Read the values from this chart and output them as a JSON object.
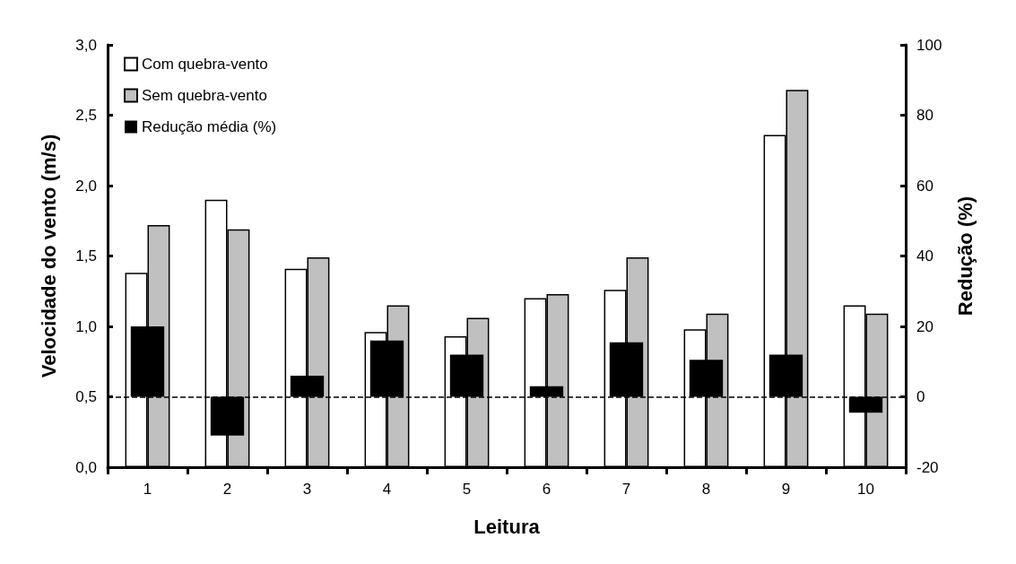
{
  "chart_data": {
    "type": "bar",
    "xlabel": "Leitura",
    "ylabel": "Velocidade do vento (m/s)",
    "y2label": "Redução (%)",
    "categories": [
      "1",
      "2",
      "3",
      "4",
      "5",
      "6",
      "7",
      "8",
      "9",
      "10"
    ],
    "series": [
      {
        "name": "Com quebra-vento",
        "color": "#ffffff",
        "values": [
          1.38,
          1.9,
          1.41,
          0.96,
          0.93,
          1.2,
          1.26,
          0.98,
          2.36,
          1.15
        ]
      },
      {
        "name": "Sem quebra-vento",
        "color": "#c0c0c0",
        "values": [
          1.72,
          1.69,
          1.49,
          1.15,
          1.06,
          1.23,
          1.49,
          1.09,
          2.68,
          1.09
        ]
      },
      {
        "name": "Redução média (%)",
        "color": "#000000",
        "axis": "y2",
        "values": [
          20,
          -11,
          6,
          16,
          12,
          3,
          15.5,
          10.5,
          12,
          -4.5
        ]
      }
    ],
    "ylim": [
      0,
      3
    ],
    "yticks": [
      {
        "value": 0,
        "label": "0,0"
      },
      {
        "value": 0.5,
        "label": "0,5"
      },
      {
        "value": 1,
        "label": "1,0"
      },
      {
        "value": 1.5,
        "label": "1,5"
      },
      {
        "value": 2,
        "label": "2,0"
      },
      {
        "value": 2.5,
        "label": "2,5"
      },
      {
        "value": 3,
        "label": "3,0"
      }
    ],
    "y2lim": [
      -20,
      100
    ],
    "y2ticks": [
      -20,
      0,
      20,
      40,
      60,
      80,
      100
    ],
    "ref_lines": [
      {
        "axis": "y2",
        "value": 0,
        "color": "#000000",
        "line_style": "dashed"
      }
    ],
    "legend": "top left",
    "grid": false
  }
}
